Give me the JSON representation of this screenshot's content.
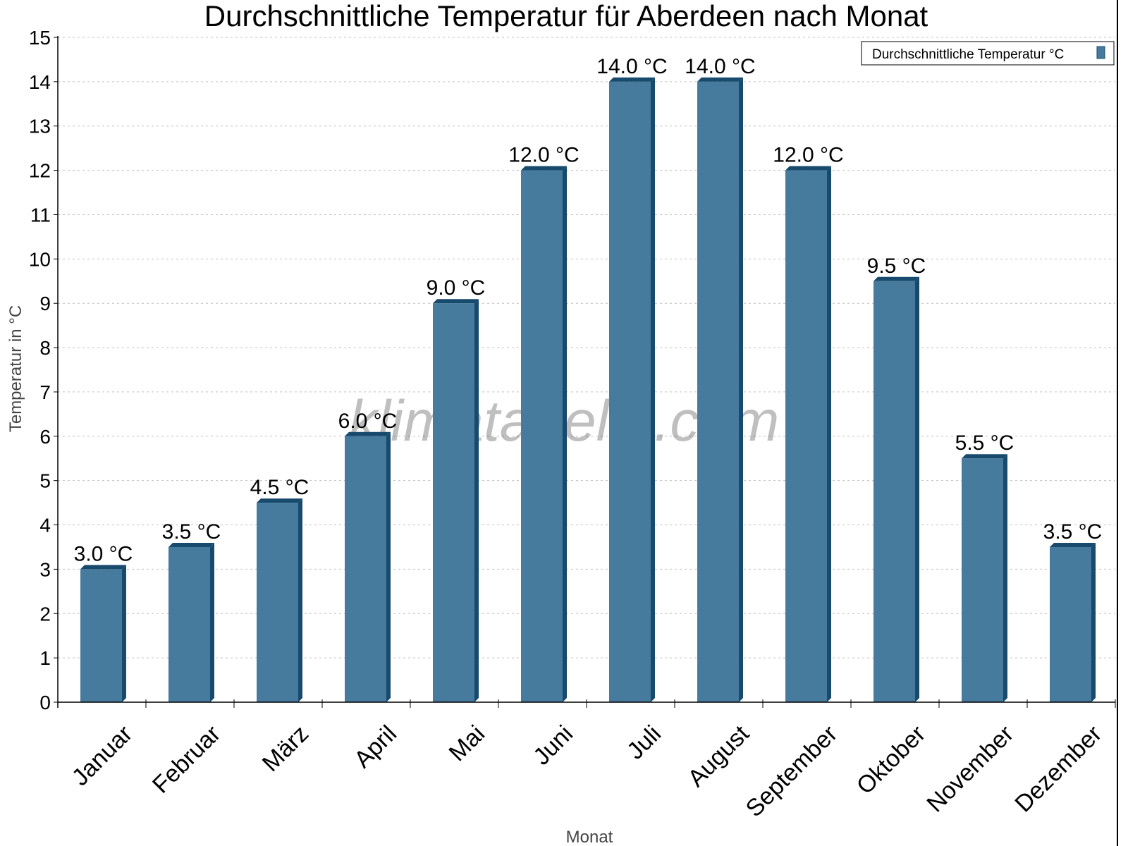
{
  "chart_data": {
    "type": "bar",
    "title": "Durchschnittliche Temperatur für Aberdeen nach Monat",
    "xlabel": "Monat",
    "ylabel": "Temperatur in °C",
    "ylim": [
      0,
      15
    ],
    "yticks": [
      0,
      1,
      2,
      3,
      4,
      5,
      6,
      7,
      8,
      9,
      10,
      11,
      12,
      13,
      14,
      15
    ],
    "grid": true,
    "legend_placement": "top-right",
    "categories": [
      "Januar",
      "Februar",
      "März",
      "April",
      "Mai",
      "Juni",
      "Juli",
      "August",
      "September",
      "Oktober",
      "November",
      "Dezember"
    ],
    "series": [
      {
        "name": "Durchschnittliche Temperatur °C",
        "values": [
          3.0,
          3.5,
          4.5,
          6.0,
          9.0,
          12.0,
          14.0,
          14.0,
          12.0,
          9.5,
          5.5,
          3.5
        ]
      }
    ],
    "data_labels": [
      "3.0 °C",
      "3.5 °C",
      "4.5 °C",
      "6.0 °C",
      "9.0 °C",
      "12.0 °C",
      "14.0 °C",
      "14.0 °C",
      "12.0 °C",
      "9.5 °C",
      "5.5 °C",
      "3.5 °C"
    ],
    "colors": {
      "bar_front": "#467b9d",
      "bar_side": "#174a6c",
      "grid": "#c0c0c0"
    },
    "watermark": "klimatabelle.com"
  }
}
